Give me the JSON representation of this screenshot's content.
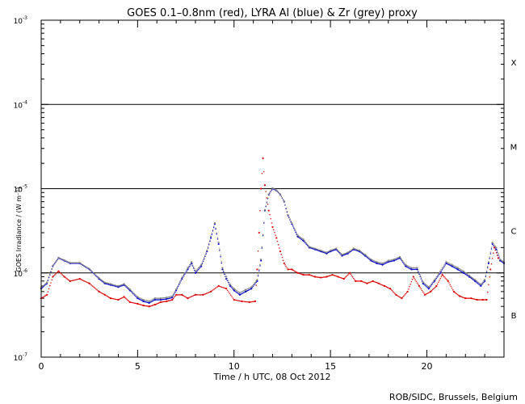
{
  "chart_data": {
    "type": "scatter",
    "title": "GOES 0.1–0.8nm (red), LYRA Al (blue) & Zr (grey) proxy",
    "xlabel": "Time / h UTC, 08 Oct 2012",
    "ylabel": "GOES Irradiance / (W m⁻²)",
    "xlim": [
      0,
      24
    ],
    "ylim": [
      1e-07,
      0.001
    ],
    "yscale": "log",
    "x_ticks": [
      {
        "value": 0,
        "label": "0"
      },
      {
        "value": 5,
        "label": "5"
      },
      {
        "value": 10,
        "label": "10"
      },
      {
        "value": 15,
        "label": "15"
      },
      {
        "value": 20,
        "label": "20"
      }
    ],
    "y_ticks": [
      {
        "value": 1e-07,
        "base": "10",
        "exp": "-7"
      },
      {
        "value": 1e-06,
        "base": "10",
        "exp": "-6"
      },
      {
        "value": 1e-05,
        "base": "10",
        "exp": "-5"
      },
      {
        "value": 0.0001,
        "base": "10",
        "exp": "-4"
      },
      {
        "value": 0.001,
        "base": "10",
        "exp": "-3"
      }
    ],
    "flare_thresholds": [
      1e-06,
      1e-05,
      0.0001
    ],
    "flare_classes": [
      {
        "label": "X",
        "value": 0.000316
      },
      {
        "label": "M",
        "value": 3.16e-05
      },
      {
        "label": "C",
        "value": 3.16e-06
      },
      {
        "label": "B",
        "value": 3.16e-07
      }
    ],
    "series": [
      {
        "color": "#0000cc",
        "x": [
          0,
          0.3,
          0.6,
          0.9,
          1.2,
          1.5,
          2.0,
          2.5,
          3.0,
          3.3,
          3.6,
          4.0,
          4.3,
          4.6,
          5.0,
          5.3,
          5.6,
          5.9,
          6.2,
          6.5,
          6.8,
          7.0,
          7.3,
          7.6,
          7.8,
          8.0,
          8.3,
          8.6,
          8.8,
          9.0,
          9.2,
          9.4,
          9.6,
          9.8,
          10.0,
          10.3,
          10.6,
          10.9,
          11.2,
          11.4,
          11.6,
          11.8,
          12.0,
          12.2,
          12.4,
          12.6,
          12.8,
          13.0,
          13.3,
          13.6,
          13.9,
          14.2,
          14.5,
          14.8,
          15.0,
          15.3,
          15.6,
          15.9,
          16.2,
          16.5,
          16.8,
          17.1,
          17.4,
          17.7,
          18.0,
          18.3,
          18.6,
          18.9,
          19.2,
          19.5,
          19.8,
          20.1,
          20.4,
          20.7,
          21.0,
          21.3,
          21.6,
          21.9,
          22.2,
          22.5,
          22.8,
          23.0,
          23.2,
          23.4,
          23.6,
          23.8,
          24.0
        ],
        "values": [
          6.5e-07,
          7.5e-07,
          1.2e-06,
          1.5e-06,
          1.4e-06,
          1.3e-06,
          1.3e-06,
          1.1e-06,
          8.5e-07,
          7.5e-07,
          7.2e-07,
          6.8e-07,
          7.2e-07,
          6.2e-07,
          5e-07,
          4.6e-07,
          4.4e-07,
          4.8e-07,
          4.8e-07,
          4.9e-07,
          5.1e-07,
          6.2e-07,
          8.5e-07,
          1.1e-06,
          1.3e-06,
          1e-06,
          1.2e-06,
          1.8e-06,
          2.6e-06,
          3.8e-06,
          2.2e-06,
          1.1e-06,
          8.5e-07,
          7e-07,
          6.2e-07,
          5.5e-07,
          6e-07,
          6.5e-07,
          8e-07,
          1.4e-06,
          5.5e-06,
          8.5e-06,
          1e-05,
          9.5e-06,
          8.5e-06,
          7e-06,
          4.8e-06,
          3.8e-06,
          2.7e-06,
          2.4e-06,
          2e-06,
          1.9e-06,
          1.8e-06,
          1.7e-06,
          1.8e-06,
          1.9e-06,
          1.6e-06,
          1.7e-06,
          1.9e-06,
          1.8e-06,
          1.6e-06,
          1.4e-06,
          1.3e-06,
          1.25e-06,
          1.35e-06,
          1.4e-06,
          1.5e-06,
          1.2e-06,
          1.1e-06,
          1.1e-06,
          7.5e-07,
          6.5e-07,
          8e-07,
          1e-06,
          1.3e-06,
          1.2e-06,
          1.1e-06,
          1e-06,
          9e-07,
          8e-07,
          7e-07,
          8e-07,
          1.3e-06,
          2.2e-06,
          1.9e-06,
          1.4e-06,
          1.3e-06
        ]
      },
      {
        "color": "#888888",
        "x": [
          0,
          0.3,
          0.6,
          0.9,
          1.2,
          1.5,
          2.0,
          2.5,
          3.0,
          3.3,
          3.6,
          4.0,
          4.3,
          4.6,
          5.0,
          5.3,
          5.6,
          5.9,
          6.2,
          6.5,
          6.8,
          7.0,
          7.3,
          7.6,
          7.8,
          8.0,
          8.3,
          8.6,
          8.8,
          9.0,
          9.2,
          9.4,
          9.6,
          9.8,
          10.0,
          10.3,
          10.6,
          10.9,
          11.2,
          11.4,
          11.6,
          11.8,
          12.0,
          12.2,
          12.4,
          12.6,
          12.8,
          13.0,
          13.3,
          13.6,
          13.9,
          14.2,
          14.5,
          14.8,
          15.0,
          15.3,
          15.6,
          15.9,
          16.2,
          16.5,
          16.8,
          17.1,
          17.4,
          17.7,
          18.0,
          18.3,
          18.6,
          18.9,
          19.2,
          19.5,
          19.8,
          20.1,
          20.4,
          20.7,
          21.0,
          21.3,
          21.6,
          21.9,
          22.2,
          22.5,
          22.8,
          23.0,
          23.2,
          23.4,
          23.6,
          23.8,
          24.0
        ],
        "values": [
          6.7e-07,
          7.7e-07,
          1.22e-06,
          1.52e-06,
          1.42e-06,
          1.32e-06,
          1.32e-06,
          1.12e-06,
          8.7e-07,
          7.7e-07,
          7.4e-07,
          7e-07,
          7.4e-07,
          6.4e-07,
          5.2e-07,
          4.8e-07,
          4.6e-07,
          5e-07,
          5e-07,
          5.1e-07,
          5.3e-07,
          6.4e-07,
          8.8e-07,
          1.15e-06,
          1.35e-06,
          1.05e-06,
          1.25e-06,
          1.85e-06,
          2.7e-06,
          3.9e-06,
          2.3e-06,
          1.15e-06,
          9e-07,
          7.3e-07,
          6.5e-07,
          5.8e-07,
          6.3e-07,
          6.8e-07,
          8.3e-07,
          1.45e-06,
          5.6e-06,
          8.6e-06,
          1.02e-05,
          9.6e-06,
          8.6e-06,
          7.1e-06,
          4.9e-06,
          3.9e-06,
          2.8e-06,
          2.5e-06,
          2.05e-06,
          1.95e-06,
          1.85e-06,
          1.75e-06,
          1.85e-06,
          1.95e-06,
          1.65e-06,
          1.75e-06,
          1.95e-06,
          1.85e-06,
          1.65e-06,
          1.45e-06,
          1.35e-06,
          1.3e-06,
          1.4e-06,
          1.45e-06,
          1.55e-06,
          1.25e-06,
          1.15e-06,
          1.15e-06,
          7.8e-07,
          6.8e-07,
          8.3e-07,
          1.05e-06,
          1.35e-06,
          1.25e-06,
          1.15e-06,
          1.05e-06,
          9.3e-07,
          8.3e-07,
          7.3e-07,
          8.3e-07,
          1.35e-06,
          2.3e-06,
          2e-06,
          1.45e-06,
          1.35e-06
        ]
      },
      {
        "color": "#dd0000",
        "x": [
          0,
          0.3,
          0.6,
          0.9,
          1.2,
          1.5,
          2.0,
          2.5,
          3.0,
          3.3,
          3.6,
          4.0,
          4.3,
          4.6,
          5.0,
          5.3,
          5.6,
          5.9,
          6.2,
          6.5,
          6.8,
          7.0,
          7.3,
          7.6,
          8.0,
          8.4,
          8.8,
          9.2,
          9.6,
          10.0,
          10.4,
          10.8,
          11.1,
          11.2,
          11.3,
          11.4,
          11.5,
          11.6,
          11.8,
          12.0,
          12.2,
          12.4,
          12.6,
          12.8,
          13.0,
          13.3,
          13.6,
          13.9,
          14.2,
          14.5,
          14.8,
          15.1,
          15.4,
          15.7,
          16.0,
          16.3,
          16.6,
          16.9,
          17.2,
          17.5,
          17.8,
          18.1,
          18.4,
          18.7,
          19.0,
          19.3,
          19.6,
          19.9,
          20.2,
          20.5,
          20.8,
          21.1,
          21.4,
          21.7,
          22.0,
          22.3,
          22.6,
          22.9,
          23.1,
          23.3,
          23.5,
          23.7
        ],
        "values": [
          5e-07,
          5.5e-07,
          9e-07,
          1.05e-06,
          9e-07,
          8e-07,
          8.5e-07,
          7.5e-07,
          6e-07,
          5.5e-07,
          5e-07,
          4.8e-07,
          5.2e-07,
          4.5e-07,
          4.3e-07,
          4.1e-07,
          4e-07,
          4.2e-07,
          4.5e-07,
          4.6e-07,
          4.8e-07,
          5.5e-07,
          5.5e-07,
          5e-07,
          5.5e-07,
          5.5e-07,
          6e-07,
          7e-07,
          6.5e-07,
          4.8e-07,
          4.6e-07,
          4.5e-07,
          4.6e-07,
          1.1e-06,
          3e-06,
          1e-05,
          2.3e-05,
          1.1e-05,
          5.5e-06,
          3.5e-06,
          2.6e-06,
          1.8e-06,
          1.3e-06,
          1.1e-06,
          1.1e-06,
          1e-06,
          9.5e-07,
          9.5e-07,
          9e-07,
          8.8e-07,
          9e-07,
          9.5e-07,
          9e-07,
          8.5e-07,
          1e-06,
          8e-07,
          8e-07,
          7.5e-07,
          8e-07,
          7.5e-07,
          7e-07,
          6.5e-07,
          5.5e-07,
          5e-07,
          6e-07,
          9e-07,
          7e-07,
          5.5e-07,
          6e-07,
          7e-07,
          9.5e-07,
          8e-07,
          6e-07,
          5.3e-07,
          5e-07,
          5e-07,
          4.8e-07,
          4.8e-07,
          4.8e-07,
          1.1e-06,
          2e-06,
          1.5e-06
        ]
      }
    ],
    "credit": "ROB/SIDC, Brussels, Belgium"
  }
}
